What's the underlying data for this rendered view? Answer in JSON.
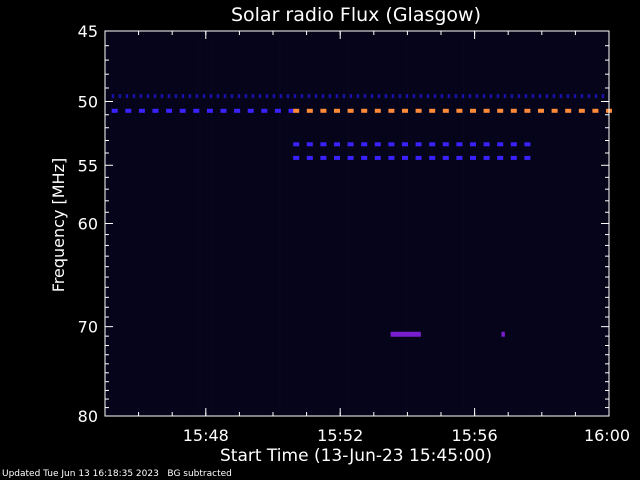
{
  "chart_data": {
    "type": "heatmap",
    "title": "Solar radio Flux (Glasgow)",
    "xlabel": "Start Time (13-Jun-23 15:45:00)",
    "ylabel": "Frequency [MHz]",
    "x_range_minutes": [
      0,
      15
    ],
    "x_ticks": [
      {
        "minute": 3,
        "label": "15:48"
      },
      {
        "minute": 7,
        "label": "15:52"
      },
      {
        "minute": 11,
        "label": "15:56"
      },
      {
        "minute": 15,
        "label": "16:00"
      }
    ],
    "y_scale": "log",
    "ylim": [
      45,
      80
    ],
    "y_ticks": [
      45,
      50,
      55,
      60,
      70,
      80
    ],
    "background_subtracted": true,
    "colors": {
      "background": "#000000",
      "field": "#050418",
      "axis": "#ffffff",
      "low_flux": "#1a12a8",
      "medium_flux": "#3a22ff",
      "burst": "#7a1fd0",
      "high_flux": "#ff8a3a"
    },
    "features": [
      {
        "name": "continuous emission",
        "freq_mhz": 49.6,
        "t_start": 0.2,
        "t_end": 15,
        "level": "low"
      },
      {
        "name": "band 51 MHz early",
        "freq_mhz": 50.7,
        "t_start": 0.2,
        "t_end": 5.8,
        "level": "medium"
      },
      {
        "name": "band 51 MHz",
        "freq_mhz": 50.7,
        "t_start": 5.6,
        "t_end": 15,
        "level": "high"
      },
      {
        "name": "band 53.5 MHz",
        "freq_mhz": 53.3,
        "t_start": 5.6,
        "t_end": 12.8,
        "level": "medium"
      },
      {
        "name": "band 54.5 MHz",
        "freq_mhz": 54.4,
        "t_start": 5.6,
        "t_end": 12.8,
        "level": "medium"
      },
      {
        "name": "burst",
        "freq_mhz": 70.8,
        "t_start": 8.5,
        "t_end": 9.4,
        "level": "burst"
      },
      {
        "name": "burst 2",
        "freq_mhz": 70.8,
        "t_start": 11.8,
        "t_end": 11.9,
        "level": "burst"
      }
    ]
  },
  "footer": {
    "updated": "Updated Tue Jun 13 16:18:35 2023",
    "note": "BG subtracted"
  }
}
